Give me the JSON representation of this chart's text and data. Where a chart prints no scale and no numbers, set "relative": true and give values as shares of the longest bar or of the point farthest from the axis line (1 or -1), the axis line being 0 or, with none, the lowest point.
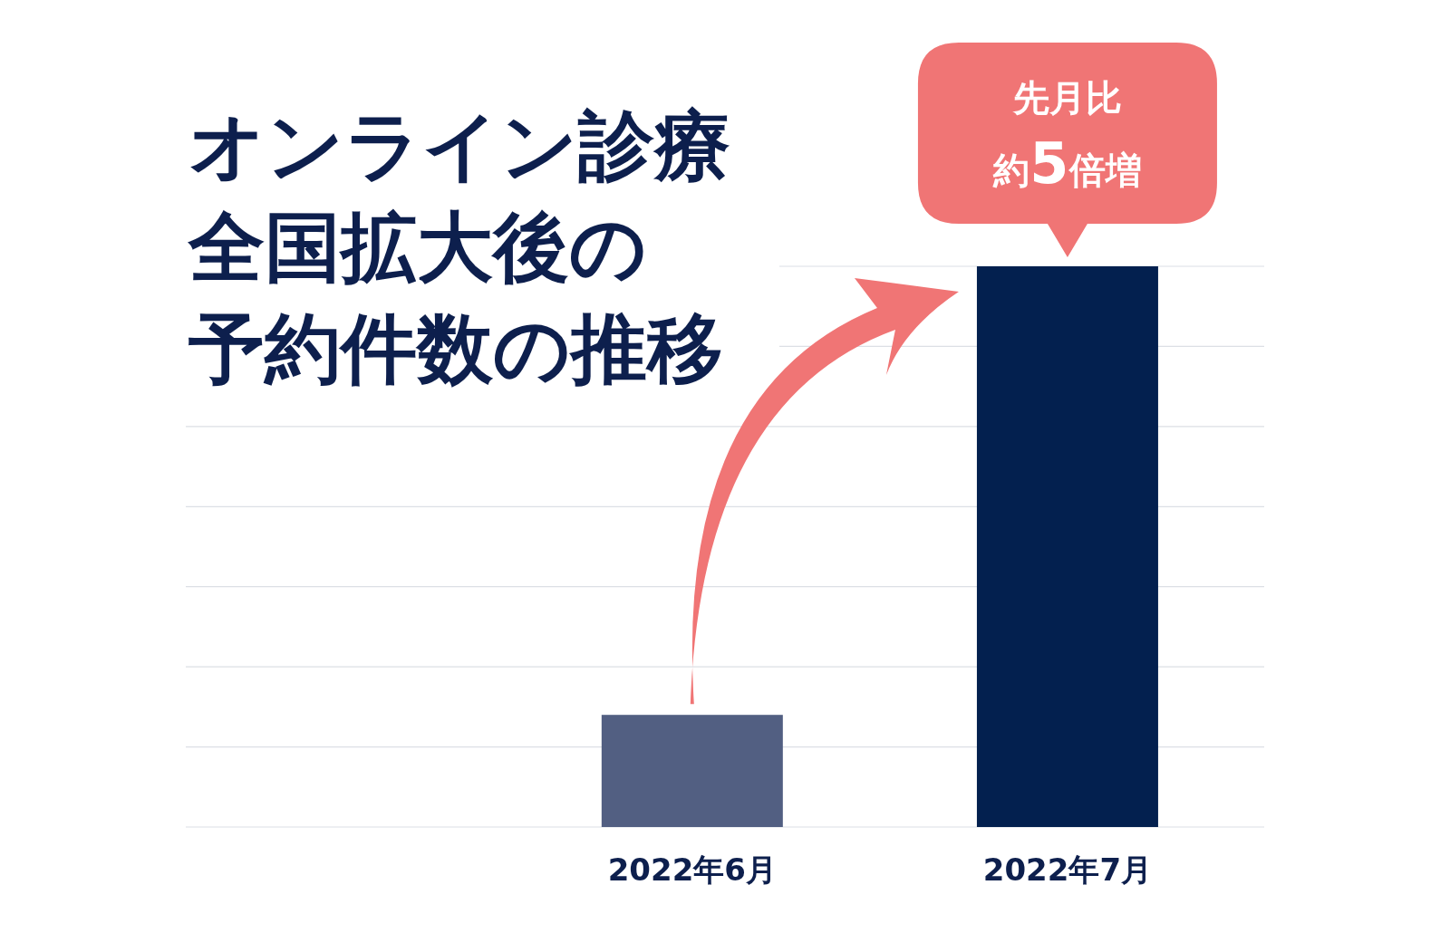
{
  "chart_data": {
    "type": "bar",
    "title": "オンライン診療全国拡大後の予約件数の推移",
    "categories": [
      "2022年6月",
      "2022年7月"
    ],
    "values": [
      0.2,
      1
    ],
    "colors": [
      "#525f82",
      "#03204f"
    ],
    "relative": true,
    "grid": "y",
    "annotations": [
      {
        "text": "先月比約5倍増",
        "x": "2022年7月",
        "y": 1
      }
    ]
  }
}
